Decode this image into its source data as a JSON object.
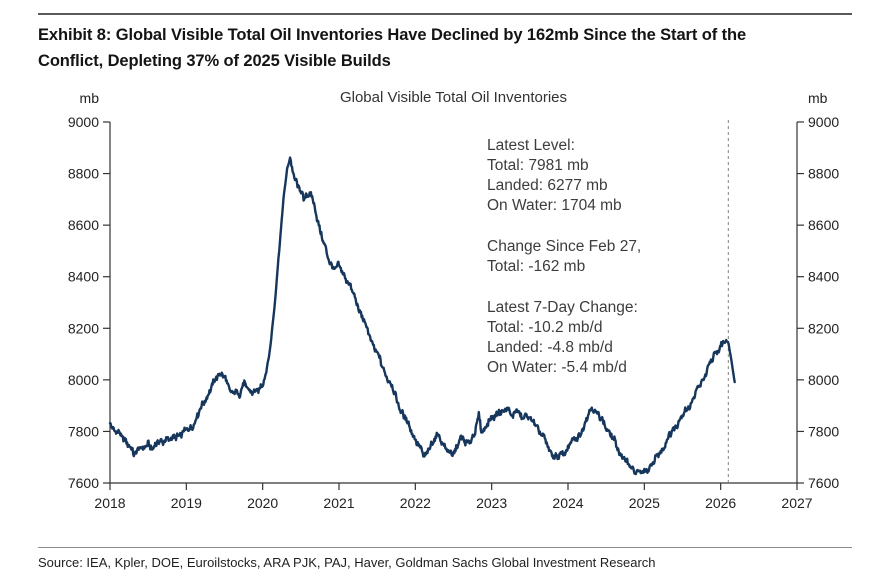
{
  "page": {
    "exhibit_title_line1": "Exhibit 8: Global Visible Total Oil Inventories Have Declined by 162mb Since the Start of the",
    "exhibit_title_line2": "Conflict, Depleting 37% of 2025 Visible Builds",
    "source_line": "Source: IEA, Kpler, DOE, Euroilstocks, ARA PJK, PAJ, Haver, Goldman Sachs Global Investment Research"
  },
  "chart_data": {
    "type": "line",
    "title": "Global Visible Total Oil Inventories",
    "unit_left": "mb",
    "unit_right": "mb",
    "xlim": [
      2018,
      2027
    ],
    "ylim": [
      7600,
      9000
    ],
    "x_ticks": [
      2018,
      2019,
      2020,
      2021,
      2022,
      2023,
      2024,
      2025,
      2026,
      2027
    ],
    "y_ticks": [
      9000,
      8800,
      8600,
      8400,
      8200,
      8000,
      7800,
      7600
    ],
    "grid": false,
    "legend": "none",
    "line_color": "#16365c",
    "axis_color": "#333333",
    "dashed_vline_x": 2026.1,
    "dashed_vline_color": "#808080",
    "annotations": [
      {
        "lines": [
          "Latest Level:",
          "Total: 7981 mb",
          "Landed: 6277 mb",
          "On Water: 1704 mb"
        ]
      },
      {
        "lines": [
          "Change Since Feb 27,",
          "Total: -162 mb"
        ]
      },
      {
        "lines": [
          "Latest 7-Day Change:",
          "Total: -10.2 mb/d",
          "Landed: -4.8 mb/d",
          "On Water: -5.4 mb/d"
        ]
      }
    ],
    "latest_level": {
      "total_mb": 7981,
      "landed_mb": 6277,
      "on_water_mb": 1704
    },
    "change_since_feb_27_mb": -162,
    "latest_7_day_change": {
      "total_mbd": -10.2,
      "landed_mbd": -4.8,
      "on_water_mbd": -5.4
    },
    "series": [
      {
        "name": "Global Visible Total Oil Inventories",
        "unit": "mb",
        "points": [
          [
            2018.0,
            7845
          ],
          [
            2018.04,
            7805
          ],
          [
            2018.08,
            7795
          ],
          [
            2018.14,
            7790
          ],
          [
            2018.2,
            7768
          ],
          [
            2018.26,
            7735
          ],
          [
            2018.32,
            7712
          ],
          [
            2018.38,
            7742
          ],
          [
            2018.44,
            7728
          ],
          [
            2018.5,
            7752
          ],
          [
            2018.56,
            7738
          ],
          [
            2018.62,
            7752
          ],
          [
            2018.68,
            7760
          ],
          [
            2018.74,
            7775
          ],
          [
            2018.8,
            7765
          ],
          [
            2018.86,
            7780
          ],
          [
            2018.92,
            7790
          ],
          [
            2018.98,
            7798
          ],
          [
            2019.04,
            7810
          ],
          [
            2019.1,
            7832
          ],
          [
            2019.16,
            7868
          ],
          [
            2019.22,
            7910
          ],
          [
            2019.28,
            7942
          ],
          [
            2019.34,
            7975
          ],
          [
            2019.4,
            8012
          ],
          [
            2019.46,
            8032
          ],
          [
            2019.52,
            7995
          ],
          [
            2019.58,
            7948
          ],
          [
            2019.64,
            7962
          ],
          [
            2019.7,
            7938
          ],
          [
            2019.76,
            7988
          ],
          [
            2019.82,
            7965
          ],
          [
            2019.88,
            7945
          ],
          [
            2019.94,
            7958
          ],
          [
            2020.0,
            7990
          ],
          [
            2020.05,
            8032
          ],
          [
            2020.1,
            8125
          ],
          [
            2020.15,
            8270
          ],
          [
            2020.21,
            8480
          ],
          [
            2020.27,
            8690
          ],
          [
            2020.32,
            8820
          ],
          [
            2020.36,
            8862
          ],
          [
            2020.39,
            8818
          ],
          [
            2020.42,
            8772
          ],
          [
            2020.46,
            8748
          ],
          [
            2020.5,
            8738
          ],
          [
            2020.54,
            8702
          ],
          [
            2020.57,
            8726
          ],
          [
            2020.6,
            8704
          ],
          [
            2020.63,
            8722
          ],
          [
            2020.66,
            8692
          ],
          [
            2020.7,
            8652
          ],
          [
            2020.75,
            8582
          ],
          [
            2020.8,
            8526
          ],
          [
            2020.85,
            8482
          ],
          [
            2020.9,
            8448
          ],
          [
            2020.95,
            8426
          ],
          [
            2021.0,
            8442
          ],
          [
            2021.05,
            8416
          ],
          [
            2021.1,
            8392
          ],
          [
            2021.16,
            8350
          ],
          [
            2021.22,
            8310
          ],
          [
            2021.28,
            8262
          ],
          [
            2021.34,
            8215
          ],
          [
            2021.4,
            8172
          ],
          [
            2021.46,
            8128
          ],
          [
            2021.52,
            8088
          ],
          [
            2021.58,
            8042
          ],
          [
            2021.64,
            8008
          ],
          [
            2021.7,
            7968
          ],
          [
            2021.76,
            7920
          ],
          [
            2021.82,
            7878
          ],
          [
            2021.88,
            7842
          ],
          [
            2021.94,
            7808
          ],
          [
            2022.0,
            7772
          ],
          [
            2022.06,
            7732
          ],
          [
            2022.12,
            7702
          ],
          [
            2022.18,
            7738
          ],
          [
            2022.24,
            7758
          ],
          [
            2022.3,
            7792
          ],
          [
            2022.36,
            7755
          ],
          [
            2022.42,
            7722
          ],
          [
            2022.48,
            7706
          ],
          [
            2022.54,
            7742
          ],
          [
            2022.6,
            7772
          ],
          [
            2022.66,
            7755
          ],
          [
            2022.72,
            7768
          ],
          [
            2022.78,
            7788
          ],
          [
            2022.83,
            7862
          ],
          [
            2022.87,
            7802
          ],
          [
            2022.92,
            7818
          ],
          [
            2022.97,
            7838
          ],
          [
            2023.03,
            7858
          ],
          [
            2023.09,
            7882
          ],
          [
            2023.15,
            7868
          ],
          [
            2023.21,
            7892
          ],
          [
            2023.27,
            7862
          ],
          [
            2023.33,
            7880
          ],
          [
            2023.39,
            7852
          ],
          [
            2023.45,
            7868
          ],
          [
            2023.51,
            7842
          ],
          [
            2023.57,
            7828
          ],
          [
            2023.63,
            7802
          ],
          [
            2023.69,
            7768
          ],
          [
            2023.75,
            7732
          ],
          [
            2023.81,
            7708
          ],
          [
            2023.87,
            7698
          ],
          [
            2023.93,
            7712
          ],
          [
            2023.99,
            7735
          ],
          [
            2024.05,
            7758
          ],
          [
            2024.11,
            7772
          ],
          [
            2024.17,
            7798
          ],
          [
            2024.23,
            7832
          ],
          [
            2024.29,
            7885
          ],
          [
            2024.33,
            7895
          ],
          [
            2024.38,
            7868
          ],
          [
            2024.44,
            7845
          ],
          [
            2024.5,
            7818
          ],
          [
            2024.56,
            7788
          ],
          [
            2024.62,
            7752
          ],
          [
            2024.68,
            7718
          ],
          [
            2024.74,
            7692
          ],
          [
            2024.8,
            7668
          ],
          [
            2024.86,
            7652
          ],
          [
            2024.92,
            7642
          ],
          [
            2024.98,
            7636
          ],
          [
            2025.04,
            7652
          ],
          [
            2025.1,
            7672
          ],
          [
            2025.16,
            7698
          ],
          [
            2025.22,
            7726
          ],
          [
            2025.28,
            7755
          ],
          [
            2025.34,
            7788
          ],
          [
            2025.4,
            7818
          ],
          [
            2025.46,
            7845
          ],
          [
            2025.52,
            7868
          ],
          [
            2025.58,
            7895
          ],
          [
            2025.64,
            7928
          ],
          [
            2025.7,
            7962
          ],
          [
            2025.76,
            7998
          ],
          [
            2025.82,
            8035
          ],
          [
            2025.88,
            8072
          ],
          [
            2025.94,
            8108
          ],
          [
            2026.0,
            8132
          ],
          [
            2026.05,
            8148
          ],
          [
            2026.1,
            8145
          ],
          [
            2026.13,
            8098
          ],
          [
            2026.16,
            8038
          ],
          [
            2026.19,
            7981
          ]
        ]
      }
    ]
  }
}
